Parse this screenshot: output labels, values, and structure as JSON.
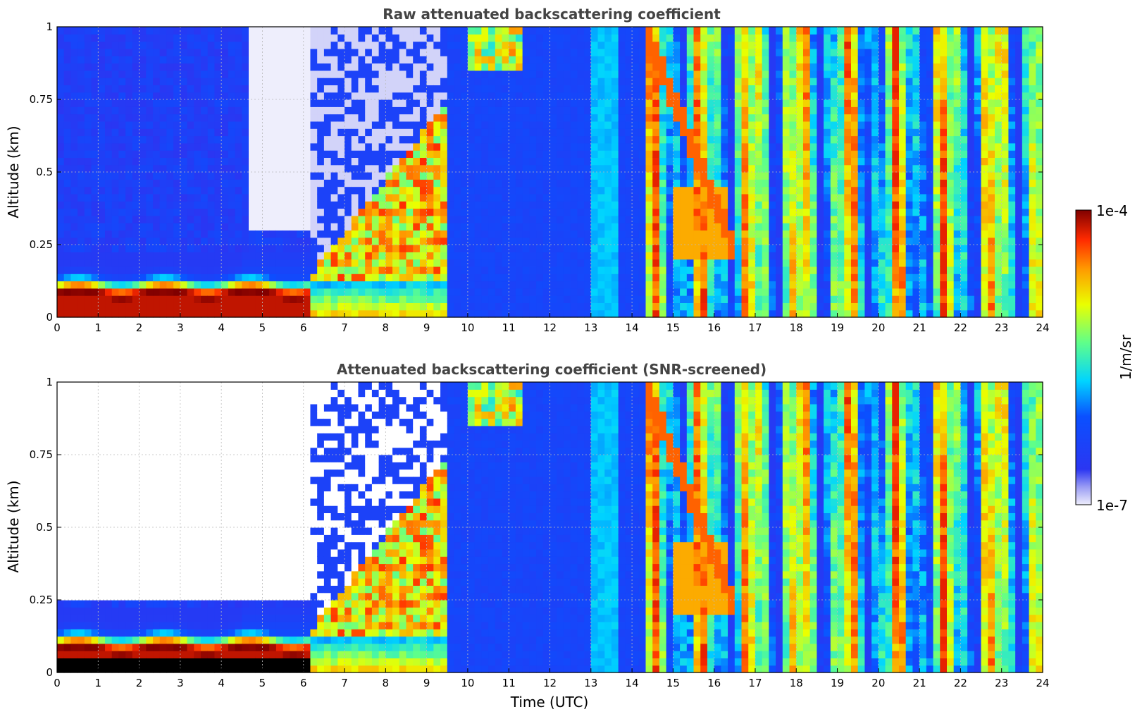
{
  "chart_data": [
    {
      "type": "heatmap",
      "title": "Raw attenuated backscattering coefficient",
      "xlabel": "",
      "ylabel": "Altitude (km)",
      "xlim": [
        0,
        24
      ],
      "ylim": [
        0,
        1
      ],
      "x_ticks": [
        "0",
        "1",
        "2",
        "3",
        "4",
        "5",
        "6",
        "7",
        "8",
        "9",
        "10",
        "11",
        "12",
        "13",
        "14",
        "15",
        "16",
        "17",
        "18",
        "19",
        "20",
        "21",
        "22",
        "23",
        "24"
      ],
      "y_ticks": [
        "0",
        "0.25",
        "0.5",
        "0.75",
        "1"
      ],
      "grid": true,
      "screened": false
    },
    {
      "type": "heatmap",
      "title": "Attenuated backscattering coefficient (SNR-screened)",
      "xlabel": "Time (UTC)",
      "ylabel": "Altitude (km)",
      "xlim": [
        0,
        24
      ],
      "ylim": [
        0,
        1
      ],
      "x_ticks": [
        "0",
        "1",
        "2",
        "3",
        "4",
        "5",
        "6",
        "7",
        "8",
        "9",
        "10",
        "11",
        "12",
        "13",
        "14",
        "15",
        "16",
        "17",
        "18",
        "19",
        "20",
        "21",
        "22",
        "23",
        "24"
      ],
      "y_ticks": [
        "0",
        "0.25",
        "0.5",
        "0.75",
        "1"
      ],
      "grid": true,
      "screened": true
    }
  ],
  "colorbar": {
    "label": "1/m/sr",
    "max_label": "1e-4",
    "min_label": "1e-7",
    "scale": "log",
    "colormap": "jet"
  }
}
